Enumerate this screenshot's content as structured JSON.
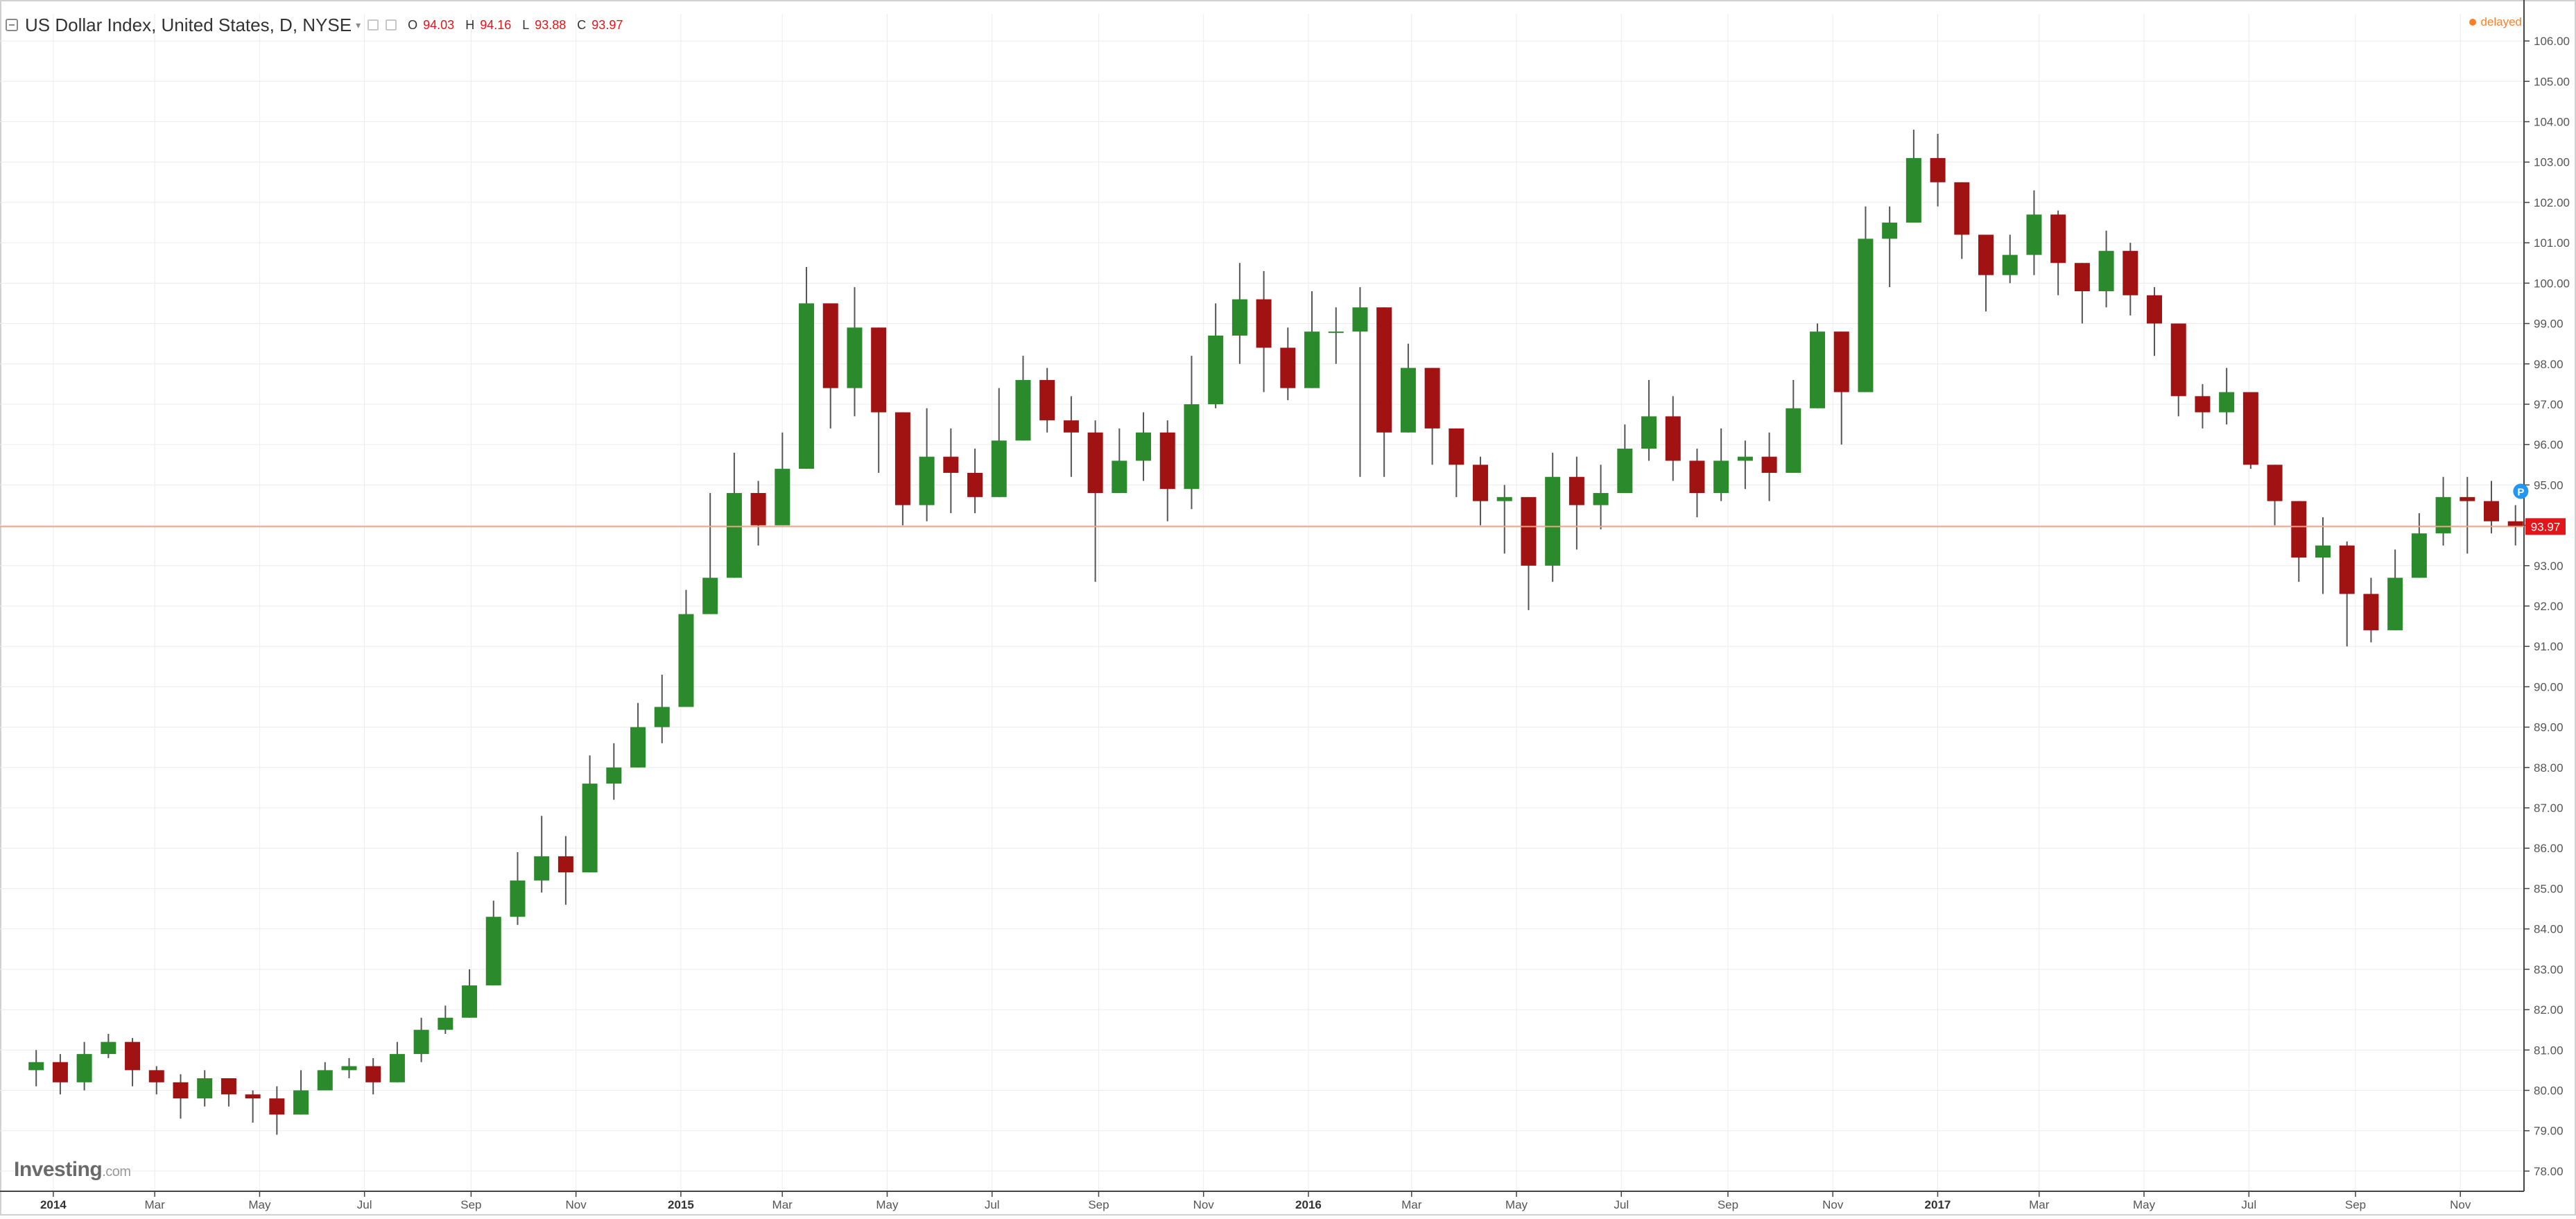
{
  "header": {
    "symbol_title": "US Dollar Index, United States, D, NYSE",
    "ohlc": {
      "o_label": "O",
      "o": "94.03",
      "h_label": "H",
      "h": "94.16",
      "l_label": "L",
      "l": "93.88",
      "c_label": "C",
      "c": "93.97"
    },
    "status": "delayed"
  },
  "logo": {
    "name": "Investing",
    "suffix": ".com"
  },
  "colors": {
    "up": "#2b8a2b",
    "down": "#a11212",
    "wick": "#555555",
    "price_line": "#f4a37f",
    "price_label_bg": "#e3151a",
    "grid": "#ececec",
    "axis_text": "#555555",
    "event_marker": "#2196f3"
  },
  "chart_data": {
    "type": "candlestick",
    "title": "US Dollar Index, United States, D, NYSE",
    "ylim": [
      77.5,
      106.5
    ],
    "y_ticks": [
      "78.00",
      "79.00",
      "80.00",
      "81.00",
      "82.00",
      "83.00",
      "84.00",
      "85.00",
      "86.00",
      "87.00",
      "88.00",
      "89.00",
      "90.00",
      "91.00",
      "92.00",
      "93.00",
      "94.00",
      "95.00",
      "96.00",
      "97.00",
      "98.00",
      "99.00",
      "100.00",
      "101.00",
      "102.00",
      "103.00",
      "104.00",
      "105.00",
      "106.00"
    ],
    "x_ticks": [
      {
        "label": "2014",
        "bold": true,
        "date": "2014-01"
      },
      {
        "label": "Mar",
        "date": "2014-03"
      },
      {
        "label": "May",
        "date": "2014-05"
      },
      {
        "label": "Jul",
        "date": "2014-07"
      },
      {
        "label": "Sep",
        "date": "2014-09"
      },
      {
        "label": "Nov",
        "date": "2014-11"
      },
      {
        "label": "2015",
        "bold": true,
        "date": "2015-01"
      },
      {
        "label": "Mar",
        "date": "2015-03"
      },
      {
        "label": "May",
        "date": "2015-05"
      },
      {
        "label": "Jul",
        "date": "2015-07"
      },
      {
        "label": "Sep",
        "date": "2015-09"
      },
      {
        "label": "Nov",
        "date": "2015-11"
      },
      {
        "label": "2016",
        "bold": true,
        "date": "2016-01"
      },
      {
        "label": "Mar",
        "date": "2016-03"
      },
      {
        "label": "May",
        "date": "2016-05"
      },
      {
        "label": "Jul",
        "date": "2016-07"
      },
      {
        "label": "Sep",
        "date": "2016-09"
      },
      {
        "label": "Nov",
        "date": "2016-11"
      },
      {
        "label": "2017",
        "bold": true,
        "date": "2017-01"
      },
      {
        "label": "Mar",
        "date": "2017-03"
      },
      {
        "label": "May",
        "date": "2017-05"
      },
      {
        "label": "Jul",
        "date": "2017-07"
      },
      {
        "label": "Sep",
        "date": "2017-09"
      },
      {
        "label": "Nov",
        "date": "2017-11"
      }
    ],
    "last_price": 93.97,
    "last_price_label": "93.97",
    "event_marker": {
      "label": "P",
      "date": "2017-11-20",
      "value": 94.5
    },
    "series": [
      {
        "x": [
          "2013-12-16",
          "2013-12-30",
          "2014-01-13",
          "2014-01-27",
          "2014-02-10",
          "2014-02-24",
          "2014-03-10",
          "2014-03-24",
          "2014-04-07",
          "2014-04-21",
          "2014-05-05",
          "2014-05-19",
          "2014-06-02",
          "2014-06-16",
          "2014-06-30",
          "2014-07-14",
          "2014-07-28",
          "2014-08-11",
          "2014-08-25",
          "2014-09-08",
          "2014-09-22",
          "2014-10-06",
          "2014-10-20",
          "2014-11-03",
          "2014-11-17",
          "2014-12-01",
          "2014-12-15",
          "2014-12-29",
          "2015-01-12",
          "2015-01-26",
          "2015-02-09",
          "2015-02-23",
          "2015-03-09",
          "2015-03-23",
          "2015-04-06",
          "2015-04-20",
          "2015-05-04",
          "2015-05-18",
          "2015-06-01",
          "2015-06-15",
          "2015-06-29",
          "2015-07-13",
          "2015-07-27",
          "2015-08-10",
          "2015-08-24",
          "2015-09-07",
          "2015-09-21",
          "2015-10-05",
          "2015-10-19",
          "2015-11-02",
          "2015-11-16",
          "2015-11-30",
          "2015-12-14",
          "2015-12-28",
          "2016-01-11",
          "2016-01-25",
          "2016-02-08",
          "2016-02-22",
          "2016-03-07",
          "2016-03-21",
          "2016-04-04",
          "2016-04-18",
          "2016-05-02",
          "2016-05-16",
          "2016-05-30",
          "2016-06-13",
          "2016-06-27",
          "2016-07-11",
          "2016-07-25",
          "2016-08-08",
          "2016-08-22",
          "2016-09-05",
          "2016-09-19",
          "2016-10-03",
          "2016-10-17",
          "2016-10-31",
          "2016-11-14",
          "2016-11-28",
          "2016-12-12",
          "2016-12-26",
          "2017-01-09",
          "2017-01-23",
          "2017-02-06",
          "2017-02-20",
          "2017-03-06",
          "2017-03-20",
          "2017-04-03",
          "2017-04-17",
          "2017-05-01",
          "2017-05-15",
          "2017-05-29",
          "2017-06-12",
          "2017-06-26",
          "2017-07-10",
          "2017-07-24",
          "2017-08-07",
          "2017-08-21",
          "2017-09-04",
          "2017-09-18",
          "2017-10-02",
          "2017-10-16",
          "2017-10-30",
          "2017-11-13",
          "2017-11-27"
        ],
        "close": [
          80.7,
          80.2,
          80.9,
          81.2,
          80.5,
          80.2,
          79.8,
          80.3,
          79.9,
          79.8,
          79.4,
          80.0,
          80.5,
          80.6,
          80.2,
          80.9,
          81.5,
          81.8,
          82.6,
          84.3,
          85.2,
          85.8,
          85.4,
          87.6,
          88.0,
          89.0,
          89.5,
          91.8,
          92.7,
          94.8,
          94.0,
          95.4,
          99.5,
          97.4,
          98.9,
          96.8,
          94.5,
          95.7,
          95.3,
          94.7,
          96.1,
          97.6,
          96.6,
          96.3,
          94.8,
          95.6,
          96.3,
          94.9,
          97.0,
          98.7,
          99.6,
          98.4,
          97.4,
          98.8,
          98.8,
          99.4,
          96.3,
          97.9,
          96.4,
          95.5,
          94.6,
          94.7,
          93.0,
          95.2,
          94.5,
          94.8,
          95.9,
          96.7,
          95.6,
          94.8,
          95.6,
          95.7,
          95.3,
          96.9,
          98.8,
          97.3,
          101.1,
          101.5,
          103.1,
          102.5,
          101.2,
          100.2,
          100.7,
          101.7,
          100.5,
          99.8,
          100.8,
          99.7,
          99.0,
          97.2,
          96.8,
          97.3,
          95.5,
          94.6,
          93.2,
          93.5,
          92.3,
          91.4,
          92.7,
          93.8,
          94.7,
          94.6,
          94.1,
          93.97
        ],
        "high": [
          81.0,
          80.9,
          81.2,
          81.4,
          81.3,
          80.6,
          80.4,
          80.5,
          80.3,
          80.0,
          80.1,
          80.5,
          80.7,
          80.8,
          80.8,
          81.2,
          81.8,
          82.1,
          83.0,
          84.7,
          85.9,
          86.8,
          86.3,
          88.3,
          88.6,
          89.6,
          90.3,
          92.4,
          94.8,
          95.8,
          95.1,
          96.3,
          100.4,
          99.4,
          99.9,
          97.8,
          96.0,
          96.9,
          96.4,
          95.9,
          97.4,
          98.2,
          97.9,
          97.2,
          96.6,
          96.4,
          96.8,
          96.6,
          98.2,
          99.5,
          100.5,
          100.3,
          98.9,
          99.8,
          99.4,
          99.9,
          97.7,
          98.5,
          97.6,
          96.4,
          95.7,
          95.0,
          94.6,
          95.8,
          95.7,
          95.5,
          96.5,
          97.6,
          97.2,
          95.9,
          96.4,
          96.1,
          96.3,
          97.6,
          99.0,
          98.4,
          101.9,
          101.9,
          103.8,
          103.7,
          102.4,
          101.2,
          101.2,
          102.3,
          101.8,
          100.5,
          101.3,
          101.0,
          99.9,
          98.0,
          97.5,
          97.9,
          96.9,
          95.5,
          94.1,
          94.2,
          93.6,
          92.7,
          93.4,
          94.3,
          95.2,
          95.2,
          95.1,
          94.5
        ],
        "low": [
          80.1,
          79.9,
          80.0,
          80.8,
          80.1,
          79.9,
          79.3,
          79.6,
          79.6,
          79.2,
          78.9,
          79.7,
          80.1,
          80.3,
          79.9,
          80.3,
          80.7,
          81.4,
          81.9,
          82.8,
          84.1,
          84.9,
          84.6,
          86.1,
          87.2,
          88.2,
          88.6,
          89.7,
          91.8,
          93.2,
          93.5,
          94.2,
          96.2,
          96.4,
          96.7,
          95.3,
          94.0,
          94.1,
          94.3,
          94.3,
          95.2,
          96.8,
          96.3,
          95.2,
          92.6,
          95.0,
          95.1,
          94.1,
          94.4,
          96.9,
          98.0,
          97.3,
          97.1,
          97.4,
          98.0,
          95.2,
          95.2,
          96.6,
          95.5,
          94.7,
          94.0,
          93.3,
          91.9,
          92.6,
          93.4,
          93.9,
          95.3,
          95.6,
          95.1,
          94.2,
          94.6,
          94.9,
          94.6,
          95.9,
          97.0,
          96.0,
          98.3,
          99.9,
          101.6,
          101.9,
          100.6,
          99.3,
          100.0,
          100.2,
          99.7,
          99.0,
          99.4,
          99.2,
          98.2,
          96.7,
          96.4,
          96.5,
          95.4,
          94.0,
          92.6,
          92.3,
          91.0,
          91.1,
          91.6,
          92.9,
          93.5,
          93.3,
          93.8,
          93.5
        ]
      }
    ]
  }
}
